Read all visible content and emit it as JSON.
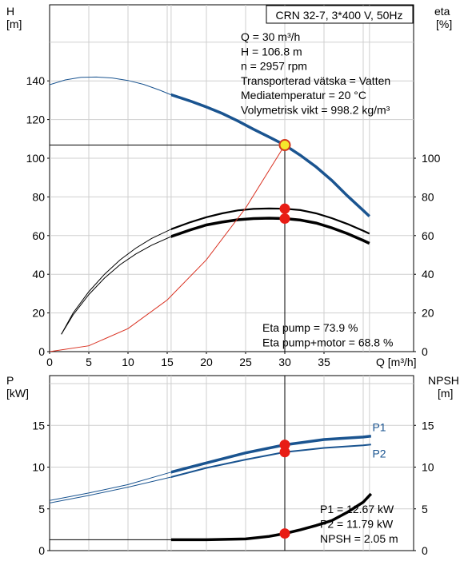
{
  "chart_data": [
    {
      "type": "line",
      "title": "CRN 32-7, 3*400 V, 50Hz",
      "ylabel": [
        "H",
        "[m]"
      ],
      "y2label": [
        "eta",
        "[%]"
      ],
      "xlabel": "Q [m³/h]",
      "xlim": [
        0,
        45
      ],
      "ylim": [
        0,
        160
      ],
      "y2lim": [
        0,
        160
      ],
      "xticks": [
        0,
        5,
        10,
        15,
        20,
        25,
        30,
        35
      ],
      "yticks": [
        0,
        20,
        40,
        60,
        80,
        100,
        120,
        140
      ],
      "y2ticks": [
        0,
        20,
        40,
        60,
        80,
        100
      ],
      "grid": true,
      "allowed_range_x": [
        15.5,
        40.8
      ],
      "series": [
        {
          "id": "head",
          "color": "#1a5490",
          "x": [
            0,
            2,
            4,
            6,
            8,
            10,
            12,
            14,
            15.5,
            18,
            20,
            22,
            24,
            26,
            28,
            30,
            32,
            34,
            36,
            38,
            40,
            40.8
          ],
          "y": [
            138,
            140.5,
            141.8,
            142,
            141.5,
            140.2,
            138.2,
            135.3,
            132.8,
            129.5,
            126.5,
            123.2,
            119.3,
            115,
            111,
            106.8,
            101.5,
            95.5,
            88.5,
            80.5,
            73,
            70
          ]
        },
        {
          "id": "eta-pump",
          "color": "#000000",
          "x": [
            1.5,
            3,
            5,
            7,
            9,
            11,
            13,
            15.5,
            18,
            20,
            22,
            24,
            26,
            28,
            30,
            32,
            34,
            36,
            38,
            40,
            40.8
          ],
          "y": [
            9,
            20,
            31,
            40,
            47.5,
            53.5,
            58.5,
            63.3,
            67,
            69.5,
            71.5,
            73,
            73.8,
            74,
            73.9,
            73.2,
            71.5,
            69,
            66,
            62.5,
            61
          ]
        },
        {
          "id": "eta-pump-motor",
          "color": "#000000",
          "x": [
            1.5,
            3,
            5,
            7,
            9,
            11,
            13,
            15.5,
            18,
            20,
            22,
            24,
            26,
            28,
            30,
            32,
            34,
            36,
            38,
            40,
            40.8
          ],
          "y": [
            9,
            19,
            29.5,
            38,
            45,
            50.5,
            55,
            59.5,
            63,
            65.5,
            67,
            68.2,
            68.8,
            69,
            68.8,
            68,
            66.5,
            64,
            61,
            57.5,
            56
          ]
        },
        {
          "id": "system-curve",
          "color": "#d93020",
          "x": [
            0,
            5,
            10,
            15,
            20,
            25,
            30
          ],
          "y": [
            0,
            3,
            11.9,
            26.7,
            47.5,
            74.2,
            106.8
          ]
        }
      ],
      "duty_point": {
        "Q": 30,
        "H": 106.8,
        "eta_pump": 73.9,
        "eta_pump_motor": 68.8
      },
      "info_lines": [
        "Q = 30 m³/h",
        "H = 106.8 m",
        "n = 2957 rpm",
        "Transporterad vätska = Vatten",
        "Mediatemperatur = 20 °C",
        "Volymetrisk vikt = 998.2 kg/m³"
      ],
      "eta_labels": [
        "Eta pump = 73.9 %",
        "Eta pump+motor = 68.8 %"
      ]
    },
    {
      "type": "line",
      "ylabel": [
        "P",
        "[kW]"
      ],
      "y2label": [
        "NPSH",
        "[m]"
      ],
      "xlim": [
        0,
        45
      ],
      "ylim": [
        0,
        20
      ],
      "y2lim": [
        0,
        20
      ],
      "yticks": [
        0,
        5,
        10,
        15
      ],
      "y2ticks": [
        0,
        5,
        10,
        15
      ],
      "grid": true,
      "series": [
        {
          "id": "P1",
          "name": "P1",
          "color": "#1a5490",
          "x": [
            0,
            5,
            10,
            15.5,
            20,
            25,
            30,
            35,
            40,
            41
          ],
          "y": [
            6.0,
            6.9,
            7.9,
            9.4,
            10.5,
            11.7,
            12.67,
            13.3,
            13.6,
            13.7
          ]
        },
        {
          "id": "P2",
          "name": "P2",
          "color": "#1a5490",
          "x": [
            0,
            5,
            10,
            15.5,
            20,
            25,
            30,
            35,
            40,
            41
          ],
          "y": [
            5.7,
            6.6,
            7.6,
            8.8,
            9.9,
            10.9,
            11.79,
            12.3,
            12.6,
            12.7
          ]
        },
        {
          "id": "NPSH",
          "color": "#000000",
          "x": [
            15.5,
            20,
            25,
            28,
            30,
            32,
            34,
            36,
            38,
            40,
            41
          ],
          "y": [
            1.3,
            1.3,
            1.4,
            1.7,
            2.05,
            2.5,
            3.0,
            3.6,
            4.6,
            5.8,
            6.8
          ]
        }
      ],
      "duty_point": {
        "Q": 30,
        "P1": 12.67,
        "P2": 11.79,
        "NPSH": 2.05
      },
      "info_lines": [
        "P1 = 12.67 kW",
        "P2 = 11.79 kW",
        "NPSH = 2.05 m"
      ]
    }
  ]
}
